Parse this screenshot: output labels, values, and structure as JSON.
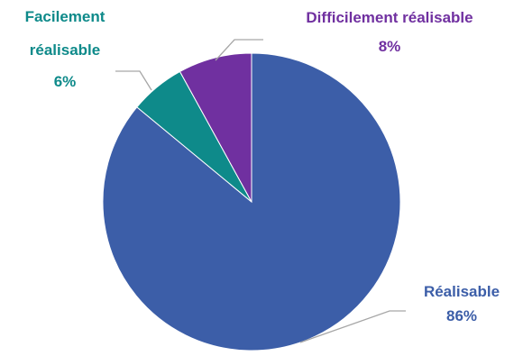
{
  "chart_data": {
    "type": "pie",
    "title": "",
    "start": "top",
    "direction": "clockwise",
    "slices": [
      {
        "label_lines": [
          "Réalisable",
          "86%"
        ],
        "category": "Réalisable",
        "value": 86,
        "color": "#3c5ea8"
      },
      {
        "label_lines": [
          "Facilement",
          "réalisable",
          "6%"
        ],
        "category": "Facilement réalisable",
        "value": 6,
        "color": "#0e8a8a"
      },
      {
        "label_lines": [
          "Difficilement réalisable",
          "8%"
        ],
        "category": "Difficilement réalisable",
        "value": 8,
        "color": "#7030a0"
      }
    ],
    "legend": "none"
  }
}
